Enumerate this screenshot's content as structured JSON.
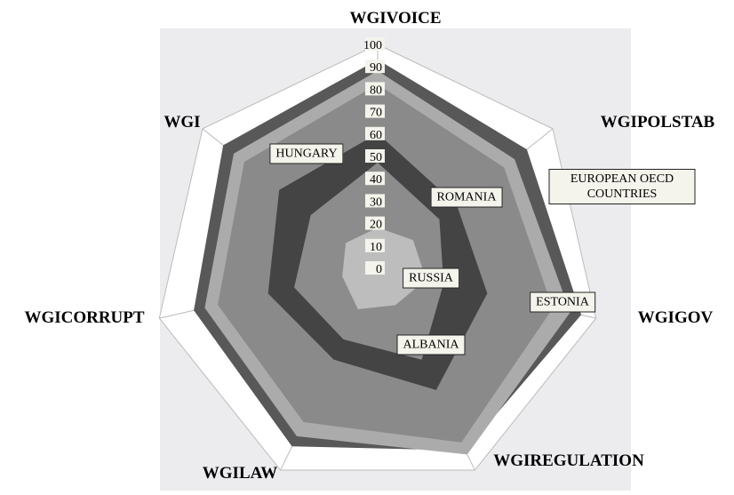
{
  "chart_data": {
    "type": "radar",
    "categories": [
      "WGIVOICE",
      "WGIPOLSTAB",
      "WGIGOV",
      "WGIREGULATION",
      "WGILAW",
      "WGICORRUPT",
      "WGI"
    ],
    "ylim": [
      0,
      100
    ],
    "yticks": [
      0,
      10,
      20,
      30,
      40,
      50,
      60,
      70,
      80,
      90,
      100
    ],
    "series": [
      {
        "name": "ESTONIA",
        "color": "#585858",
        "values": [
          93,
          85,
          93,
          90,
          88,
          84,
          88
        ]
      },
      {
        "name": "EUROPEAN OECD COUNTRIES",
        "color": "#ababab",
        "values": [
          88,
          78,
          88,
          92,
          83,
          79,
          82
        ]
      },
      {
        "name": "HUNGARY",
        "color": "#8a8a8a",
        "values": [
          82,
          72,
          80,
          86,
          76,
          73,
          76
        ]
      },
      {
        "name": "ROMANIA",
        "color": "#444444",
        "values": [
          60,
          45,
          50,
          60,
          45,
          50,
          56
        ]
      },
      {
        "name": "ALBANIA",
        "color": "#8c8c8c",
        "values": [
          47,
          35,
          30,
          45,
          35,
          38,
          38
        ]
      },
      {
        "name": "RUSSIA",
        "color": "#bdbdbd",
        "values": [
          18,
          20,
          22,
          18,
          20,
          16,
          18
        ]
      }
    ]
  }
}
